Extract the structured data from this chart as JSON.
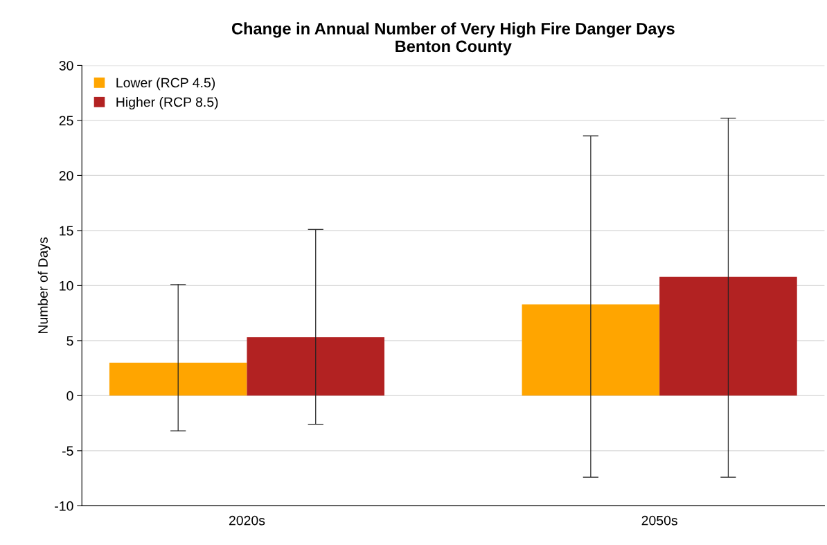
{
  "chart_data": {
    "type": "bar",
    "title": "Change in Annual Number of Very High Fire Danger Days\nBenton County",
    "ylabel": "Number of Days",
    "categories": [
      "2020s",
      "2050s"
    ],
    "series": [
      {
        "name": "Lower (RCP 4.5)",
        "color": "#ffa500",
        "values": [
          3.0,
          8.3
        ],
        "errors": [
          [
            -3.2,
            10.1
          ],
          [
            -7.4,
            23.6
          ]
        ]
      },
      {
        "name": "Higher (RCP 8.5)",
        "color": "#b22222",
        "values": [
          5.3,
          10.8
        ],
        "errors": [
          [
            -2.6,
            15.1
          ],
          [
            -7.4,
            25.2
          ]
        ]
      }
    ],
    "ylim": [
      -10,
      30
    ],
    "yticks": [
      -10,
      -5,
      0,
      5,
      10,
      15,
      20,
      25,
      30
    ],
    "grid": "y",
    "legend": "top left"
  }
}
